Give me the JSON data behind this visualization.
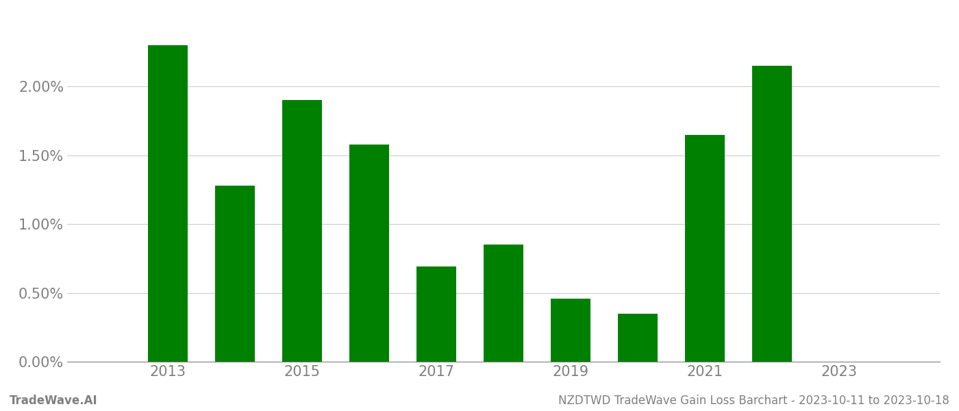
{
  "years": [
    2013,
    2014,
    2015,
    2016,
    2017,
    2018,
    2019,
    2020,
    2021,
    2022
  ],
  "values": [
    0.023,
    0.0128,
    0.019,
    0.0158,
    0.0069,
    0.0085,
    0.0046,
    0.0035,
    0.0165,
    0.0215
  ],
  "bar_color": "#008000",
  "background_color": "#ffffff",
  "footer_left": "TradeWave.AI",
  "footer_right": "NZDTWD TradeWave Gain Loss Barchart - 2023-10-11 to 2023-10-18",
  "footer_color": "#808080",
  "grid_color": "#cccccc",
  "tick_color": "#808080",
  "ylim_min": 0.0,
  "ylim_max": 0.0245,
  "xlim_min": 2011.5,
  "xlim_max": 2024.5,
  "bar_width": 0.6,
  "xticks": [
    2013,
    2015,
    2017,
    2019,
    2021,
    2023
  ],
  "ytick_interval": 0.005,
  "xtick_fontsize": 15,
  "ytick_fontsize": 15,
  "footer_fontsize": 12
}
